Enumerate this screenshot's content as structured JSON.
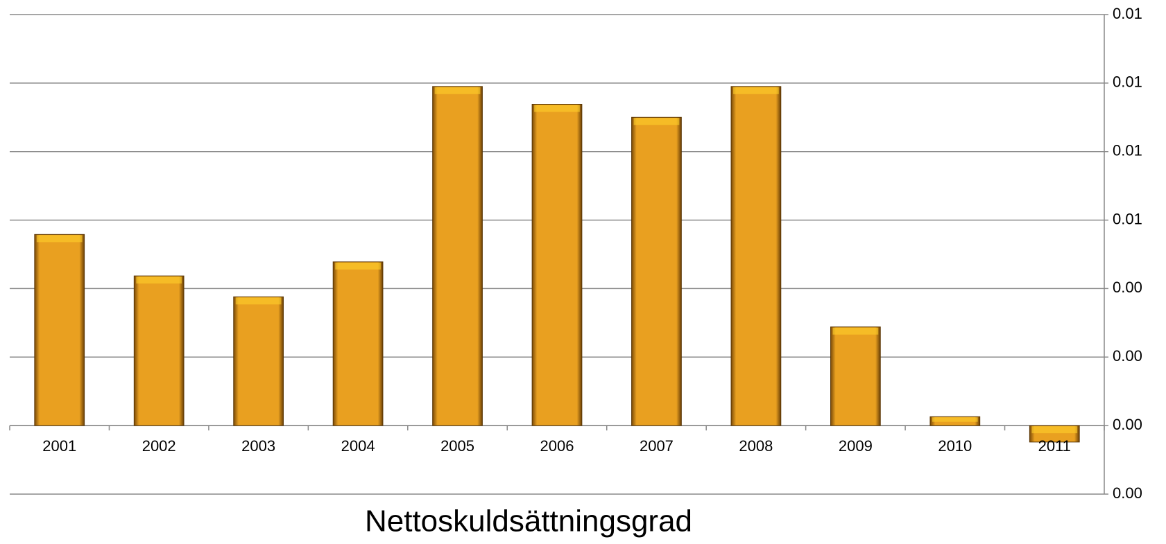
{
  "chart_data": {
    "type": "bar",
    "title": "Nettoskuldsättningsgrad",
    "categories": [
      "2001",
      "2002",
      "2003",
      "2004",
      "2005",
      "2006",
      "2007",
      "2008",
      "2009",
      "2010",
      "2011"
    ],
    "values": [
      0.00558,
      0.00437,
      0.00376,
      0.00478,
      0.0099,
      0.00938,
      0.009,
      0.0099,
      0.00288,
      0.00026,
      -0.00048
    ],
    "color": "#e9a020",
    "ylim": [
      -0.002,
      0.012
    ],
    "yticks": [
      {
        "value": -0.002,
        "label": "0.00"
      },
      {
        "value": 0,
        "label": "0.00"
      },
      {
        "value": 0.002,
        "label": "0.00"
      },
      {
        "value": 0.004,
        "label": "0.00"
      },
      {
        "value": 0.006,
        "label": "0.01"
      },
      {
        "value": 0.008,
        "label": "0.01"
      },
      {
        "value": 0.01,
        "label": "0.01"
      },
      {
        "value": 0.012,
        "label": "0.01"
      }
    ],
    "grid": true,
    "y_axis_side": "right"
  }
}
